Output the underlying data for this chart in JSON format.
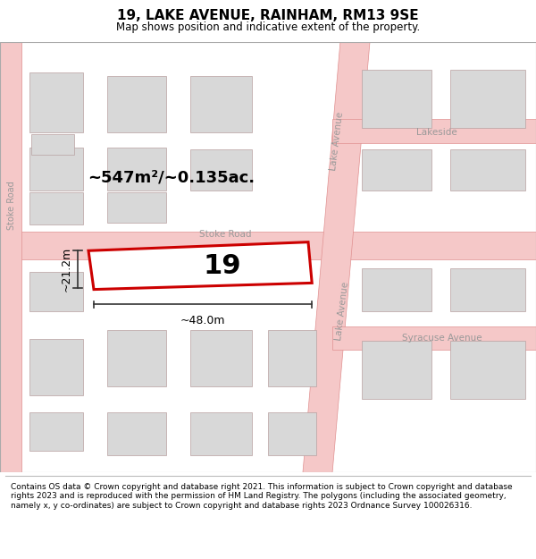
{
  "title": "19, LAKE AVENUE, RAINHAM, RM13 9SE",
  "subtitle": "Map shows position and indicative extent of the property.",
  "footer": "Contains OS data © Crown copyright and database right 2021. This information is subject to Crown copyright and database rights 2023 and is reproduced with the permission of HM Land Registry. The polygons (including the associated geometry, namely x, y co-ordinates) are subject to Crown copyright and database rights 2023 Ordnance Survey 100026316.",
  "map_bg": "#f0f0f0",
  "road_color": "#f5c8c8",
  "road_outline": "#e09090",
  "building_fill": "#d8d8d8",
  "building_outline": "#b8a0a0",
  "highlight_outline": "#cc0000",
  "highlight_fill": "#ffffff",
  "area_text": "~547m²/~0.135ac.",
  "width_text": "~48.0m",
  "height_text": "~21.2m",
  "plot_number": "19",
  "fig_width": 6.0,
  "fig_height": 6.25,
  "dpi": 100
}
